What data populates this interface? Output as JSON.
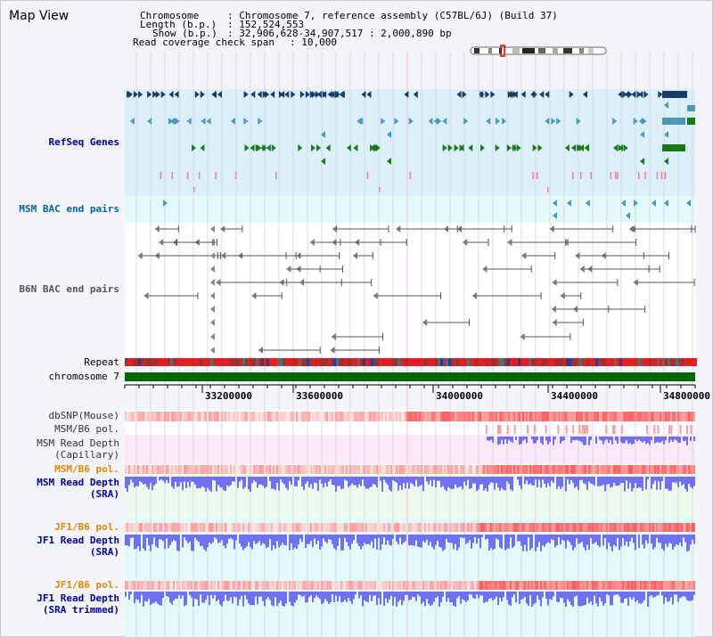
{
  "page": {
    "title": "Map View"
  },
  "header": {
    "chromosome_key": "Chromosome",
    "chromosome_val": ": Chromosome 7, reference assembly (C57BL/6J) (Build 37)",
    "length_key": "Length (b.p.)",
    "length_val": ": 152,524,553",
    "show_key": "Show (b.p.)",
    "show_val": ": 32,906,628-34,907,517 : 2,000,890 bp",
    "coverage_key": "Read coverage check span",
    "coverage_val": ": 10,000"
  },
  "tracks": {
    "refseq": "RefSeq Genes",
    "msm_bac": "MSM BAC end pairs",
    "b6n_bac": "B6N BAC end pairs",
    "repeat": "Repeat",
    "chromosome": "chromosome 7",
    "dbsnp": "dbSNP(Mouse)",
    "msm_b6_pol_1": "MSM/B6 pol.",
    "msm_depth_cap_1": "MSM Read Depth",
    "msm_depth_cap_2": "(Capillary)",
    "msm_b6_pol_2": "MSM/B6 pol.",
    "msm_depth_sra_1": "MSM Read Depth",
    "msm_depth_sra_2": "(SRA)",
    "jf1_b6_pol_1": "JF1/B6 pol.",
    "jf1_depth_sra_1": "JF1 Read Depth",
    "jf1_depth_sra_2": "(SRA)",
    "jf1_b6_pol_2": "JF1/B6 pol.",
    "jf1_depth_trim_1": "JF1 Read Depth",
    "jf1_depth_trim_2": "(SRA trimmed)"
  },
  "axis": {
    "ticks": [
      "33200000",
      "33600000",
      "34000000",
      "34400000",
      "34800000"
    ]
  },
  "colors": {
    "refseq_dark": "#1a3a6a",
    "refseq_teal": "#4a9ab8",
    "refseq_green": "#1a7a1a",
    "repeat_red": "#e02020",
    "chrom_green": "#006600",
    "depth_blue": "#7070f0",
    "label_blue": "#000099",
    "label_orange": "#e08800",
    "label_teal": "#006699"
  }
}
